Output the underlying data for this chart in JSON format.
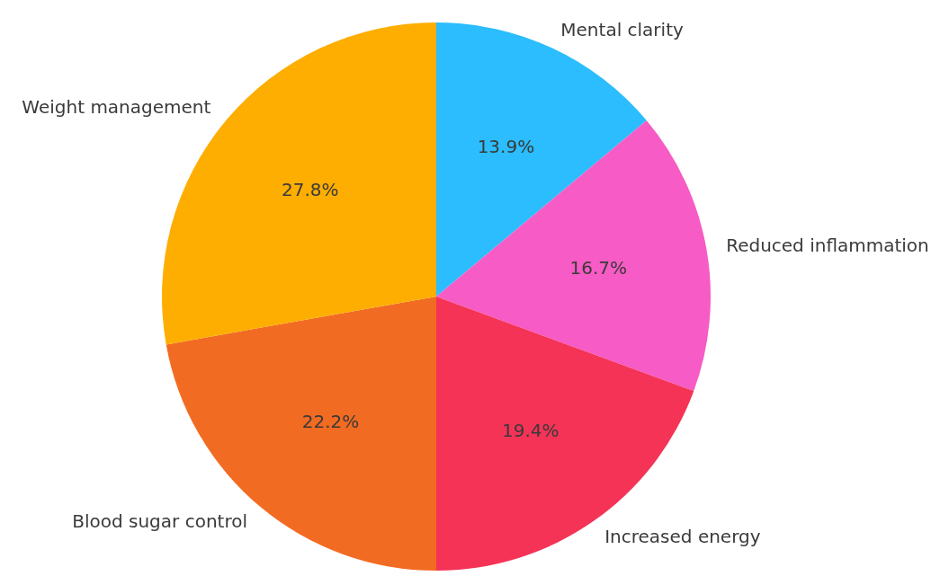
{
  "chart_data": {
    "type": "pie",
    "categories": [
      "Mental clarity",
      "Reduced inflammation",
      "Increased energy",
      "Blood sugar control",
      "Weight management"
    ],
    "values": [
      13.9,
      16.7,
      19.4,
      22.2,
      27.8
    ],
    "value_labels": [
      "13.9%",
      "16.7%",
      "19.4%",
      "22.2%",
      "27.8%"
    ],
    "colors": [
      "#2bbdfd",
      "#f75bc5",
      "#f43357",
      "#f26b22",
      "#fdae00"
    ]
  }
}
